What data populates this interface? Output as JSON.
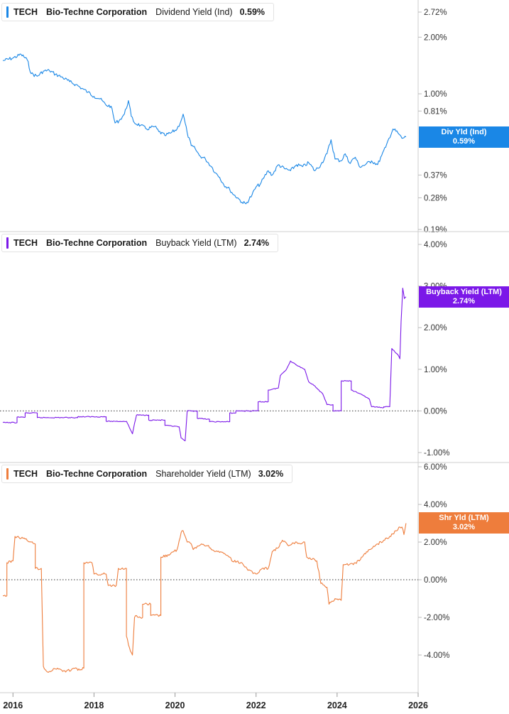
{
  "chart_data": [
    {
      "type": "line",
      "ticker": "TECH",
      "company": "Bio-Techne Corporation",
      "metric": "Dividend Yield (Ind)",
      "current_value": "0.59%",
      "flag_label": "Div Yld (Ind)",
      "color": "#1a87e6",
      "y_scale": "log",
      "y_ticks": [
        {
          "value": 2.72,
          "label": "2.72%"
        },
        {
          "value": 2.0,
          "label": "2.00%"
        },
        {
          "value": 1.0,
          "label": "1.00%"
        },
        {
          "value": 0.81,
          "label": "0.81%"
        },
        {
          "value": 0.37,
          "label": "0.37%"
        },
        {
          "value": 0.28,
          "label": "0.28%"
        },
        {
          "value": 0.19,
          "label": "0.19%"
        }
      ],
      "ylim": [
        0.19,
        2.72
      ],
      "zero_line": false,
      "series": [
        {
          "points": [
            [
              2015.75,
              1.5
            ],
            [
              2016.0,
              1.55
            ],
            [
              2016.2,
              1.62
            ],
            [
              2016.35,
              1.52
            ],
            [
              2016.45,
              1.28
            ],
            [
              2016.6,
              1.24
            ],
            [
              2016.75,
              1.32
            ],
            [
              2016.9,
              1.33
            ],
            [
              2017.05,
              1.27
            ],
            [
              2017.2,
              1.23
            ],
            [
              2017.4,
              1.16
            ],
            [
              2017.55,
              1.12
            ],
            [
              2017.7,
              1.07
            ],
            [
              2017.85,
              1.02
            ],
            [
              2018.0,
              0.97
            ],
            [
              2018.15,
              0.94
            ],
            [
              2018.3,
              0.87
            ],
            [
              2018.42,
              0.86
            ],
            [
              2018.52,
              0.7
            ],
            [
              2018.62,
              0.72
            ],
            [
              2018.75,
              0.78
            ],
            [
              2018.85,
              0.92
            ],
            [
              2018.92,
              0.76
            ],
            [
              2019.0,
              0.7
            ],
            [
              2019.15,
              0.68
            ],
            [
              2019.3,
              0.65
            ],
            [
              2019.5,
              0.67
            ],
            [
              2019.6,
              0.63
            ],
            [
              2019.75,
              0.6
            ],
            [
              2019.9,
              0.62
            ],
            [
              2020.05,
              0.65
            ],
            [
              2020.15,
              0.72
            ],
            [
              2020.2,
              0.78
            ],
            [
              2020.3,
              0.62
            ],
            [
              2020.4,
              0.53
            ],
            [
              2020.5,
              0.51
            ],
            [
              2020.6,
              0.47
            ],
            [
              2020.75,
              0.45
            ],
            [
              2020.9,
              0.41
            ],
            [
              2021.0,
              0.38
            ],
            [
              2021.1,
              0.36
            ],
            [
              2021.2,
              0.33
            ],
            [
              2021.35,
              0.31
            ],
            [
              2021.45,
              0.29
            ],
            [
              2021.55,
              0.28
            ],
            [
              2021.65,
              0.265
            ],
            [
              2021.75,
              0.26
            ],
            [
              2021.9,
              0.29
            ],
            [
              2022.0,
              0.32
            ],
            [
              2022.1,
              0.33
            ],
            [
              2022.2,
              0.36
            ],
            [
              2022.3,
              0.39
            ],
            [
              2022.4,
              0.37
            ],
            [
              2022.55,
              0.42
            ],
            [
              2022.7,
              0.4
            ],
            [
              2022.85,
              0.39
            ],
            [
              2023.0,
              0.42
            ],
            [
              2023.15,
              0.41
            ],
            [
              2023.3,
              0.43
            ],
            [
              2023.45,
              0.39
            ],
            [
              2023.6,
              0.42
            ],
            [
              2023.75,
              0.48
            ],
            [
              2023.85,
              0.57
            ],
            [
              2023.95,
              0.45
            ],
            [
              2024.1,
              0.44
            ],
            [
              2024.2,
              0.48
            ],
            [
              2024.3,
              0.43
            ],
            [
              2024.45,
              0.46
            ],
            [
              2024.55,
              0.41
            ],
            [
              2024.7,
              0.42
            ],
            [
              2024.85,
              0.44
            ],
            [
              2025.0,
              0.42
            ],
            [
              2025.1,
              0.47
            ],
            [
              2025.2,
              0.52
            ],
            [
              2025.28,
              0.58
            ],
            [
              2025.38,
              0.65
            ],
            [
              2025.5,
              0.62
            ],
            [
              2025.6,
              0.58
            ],
            [
              2025.7,
              0.59
            ]
          ]
        }
      ]
    },
    {
      "type": "line",
      "ticker": "TECH",
      "company": "Bio-Techne Corporation",
      "metric": "Buyback Yield (LTM)",
      "current_value": "2.74%",
      "flag_label": "Buyback Yield (LTM)",
      "color": "#7b18e8",
      "y_scale": "linear",
      "y_ticks": [
        {
          "value": 4.0,
          "label": "4.00%"
        },
        {
          "value": 3.0,
          "label": "3.00%"
        },
        {
          "value": 2.0,
          "label": "2.00%"
        },
        {
          "value": 1.0,
          "label": "1.00%"
        },
        {
          "value": 0.0,
          "label": "0.00%"
        },
        {
          "value": -1.0,
          "label": "-1.00%"
        }
      ],
      "ylim": [
        -1.0,
        4.0
      ],
      "zero_line": true,
      "series": [
        {
          "points": [
            [
              2015.75,
              -0.28
            ],
            [
              2016.1,
              -0.28
            ],
            [
              2016.1,
              -0.15
            ],
            [
              2016.3,
              -0.15
            ],
            [
              2016.3,
              -0.05
            ],
            [
              2016.6,
              -0.05
            ],
            [
              2016.6,
              -0.16
            ],
            [
              2017.6,
              -0.16
            ],
            [
              2017.6,
              -0.14
            ],
            [
              2018.3,
              -0.14
            ],
            [
              2018.3,
              -0.25
            ],
            [
              2018.8,
              -0.25
            ],
            [
              2018.95,
              -0.55
            ],
            [
              2019.0,
              -0.3
            ],
            [
              2019.05,
              -0.1
            ],
            [
              2019.35,
              -0.1
            ],
            [
              2019.35,
              -0.22
            ],
            [
              2019.75,
              -0.22
            ],
            [
              2019.75,
              -0.35
            ],
            [
              2020.1,
              -0.38
            ],
            [
              2020.15,
              -0.65
            ],
            [
              2020.25,
              -0.72
            ],
            [
              2020.3,
              0.0
            ],
            [
              2020.55,
              0.0
            ],
            [
              2020.55,
              -0.18
            ],
            [
              2020.85,
              -0.2
            ],
            [
              2020.85,
              -0.26
            ],
            [
              2021.35,
              -0.26
            ],
            [
              2021.35,
              -0.05
            ],
            [
              2021.5,
              -0.05
            ],
            [
              2021.5,
              0.0
            ],
            [
              2022.05,
              0.0
            ],
            [
              2022.05,
              0.22
            ],
            [
              2022.3,
              0.22
            ],
            [
              2022.3,
              0.5
            ],
            [
              2022.55,
              0.55
            ],
            [
              2022.6,
              0.85
            ],
            [
              2022.75,
              1.0
            ],
            [
              2022.85,
              1.2
            ],
            [
              2023.0,
              1.1
            ],
            [
              2023.2,
              1.0
            ],
            [
              2023.3,
              0.7
            ],
            [
              2023.45,
              0.6
            ],
            [
              2023.65,
              0.4
            ],
            [
              2023.75,
              0.15
            ],
            [
              2023.9,
              0.15
            ],
            [
              2023.9,
              0.0
            ],
            [
              2024.1,
              0.0
            ],
            [
              2024.1,
              0.72
            ],
            [
              2024.35,
              0.72
            ],
            [
              2024.35,
              0.5
            ],
            [
              2024.6,
              0.4
            ],
            [
              2024.8,
              0.28
            ],
            [
              2024.85,
              0.1
            ],
            [
              2025.15,
              0.08
            ],
            [
              2025.15,
              0.1
            ],
            [
              2025.3,
              0.1
            ],
            [
              2025.35,
              1.5
            ],
            [
              2025.5,
              1.35
            ],
            [
              2025.55,
              1.25
            ],
            [
              2025.58,
              2.15
            ],
            [
              2025.62,
              2.95
            ],
            [
              2025.66,
              2.7
            ],
            [
              2025.7,
              2.74
            ]
          ]
        }
      ]
    },
    {
      "type": "line",
      "ticker": "TECH",
      "company": "Bio-Techne Corporation",
      "metric": "Shareholder Yield (LTM)",
      "current_value": "3.02%",
      "flag_label": "Shr Yld (LTM)",
      "color": "#ee7d3c",
      "y_scale": "linear",
      "y_ticks": [
        {
          "value": 6.0,
          "label": "6.00%"
        },
        {
          "value": 4.0,
          "label": "4.00%"
        },
        {
          "value": 2.0,
          "label": "2.00%"
        },
        {
          "value": 0.0,
          "label": "0.00%"
        },
        {
          "value": -2.0,
          "label": "-2.00%"
        },
        {
          "value": -4.0,
          "label": "-4.00%"
        }
      ],
      "ylim": [
        -5.0,
        6.0
      ],
      "zero_line": true,
      "series": [
        {
          "points": [
            [
              2015.75,
              -0.85
            ],
            [
              2015.85,
              -0.85
            ],
            [
              2015.85,
              0.9
            ],
            [
              2016.0,
              1.0
            ],
            [
              2016.05,
              2.3
            ],
            [
              2016.25,
              2.2
            ],
            [
              2016.45,
              2.0
            ],
            [
              2016.55,
              1.9
            ],
            [
              2016.55,
              0.6
            ],
            [
              2016.7,
              0.6
            ],
            [
              2016.75,
              -4.6
            ],
            [
              2016.85,
              -4.9
            ],
            [
              2017.1,
              -4.7
            ],
            [
              2017.3,
              -4.9
            ],
            [
              2017.5,
              -4.7
            ],
            [
              2017.65,
              -4.8
            ],
            [
              2017.75,
              -4.7
            ],
            [
              2017.75,
              0.9
            ],
            [
              2017.95,
              0.9
            ],
            [
              2018.0,
              0.3
            ],
            [
              2018.3,
              0.3
            ],
            [
              2018.35,
              -0.3
            ],
            [
              2018.55,
              -0.3
            ],
            [
              2018.6,
              0.6
            ],
            [
              2018.8,
              0.6
            ],
            [
              2018.8,
              -3.0
            ],
            [
              2018.9,
              -3.8
            ],
            [
              2018.95,
              -4.0
            ],
            [
              2019.0,
              -2.0
            ],
            [
              2019.05,
              -1.9
            ],
            [
              2019.1,
              -2.0
            ],
            [
              2019.2,
              -2.0
            ],
            [
              2019.2,
              -1.3
            ],
            [
              2019.4,
              -1.3
            ],
            [
              2019.4,
              -1.9
            ],
            [
              2019.65,
              -1.9
            ],
            [
              2019.65,
              1.2
            ],
            [
              2019.85,
              1.3
            ],
            [
              2020.05,
              1.6
            ],
            [
              2020.15,
              2.5
            ],
            [
              2020.2,
              2.6
            ],
            [
              2020.3,
              2.0
            ],
            [
              2020.4,
              1.9
            ],
            [
              2020.45,
              1.6
            ],
            [
              2020.65,
              1.9
            ],
            [
              2020.8,
              1.8
            ],
            [
              2021.0,
              1.5
            ],
            [
              2021.2,
              1.4
            ],
            [
              2021.35,
              1.2
            ],
            [
              2021.4,
              1.0
            ],
            [
              2021.65,
              0.9
            ],
            [
              2021.8,
              0.5
            ],
            [
              2022.0,
              0.3
            ],
            [
              2022.15,
              0.6
            ],
            [
              2022.3,
              0.6
            ],
            [
              2022.4,
              1.5
            ],
            [
              2022.55,
              1.7
            ],
            [
              2022.65,
              2.1
            ],
            [
              2022.8,
              1.8
            ],
            [
              2023.0,
              2.0
            ],
            [
              2023.1,
              1.9
            ],
            [
              2023.2,
              2.0
            ],
            [
              2023.25,
              1.2
            ],
            [
              2023.5,
              1.0
            ],
            [
              2023.6,
              -0.2
            ],
            [
              2023.75,
              -0.4
            ],
            [
              2023.8,
              -1.3
            ],
            [
              2023.95,
              -1.0
            ],
            [
              2024.1,
              -1.1
            ],
            [
              2024.15,
              0.8
            ],
            [
              2024.3,
              0.8
            ],
            [
              2024.45,
              0.9
            ],
            [
              2024.55,
              1.0
            ],
            [
              2024.6,
              1.2
            ],
            [
              2024.8,
              1.6
            ],
            [
              2025.0,
              1.9
            ],
            [
              2025.15,
              2.1
            ],
            [
              2025.3,
              2.3
            ],
            [
              2025.45,
              2.6
            ],
            [
              2025.55,
              2.8
            ],
            [
              2025.6,
              2.8
            ],
            [
              2025.65,
              2.4
            ],
            [
              2025.7,
              3.0
            ]
          ]
        }
      ]
    }
  ],
  "x_axis": {
    "ticks": [
      {
        "value": 2016,
        "label": "2016"
      },
      {
        "value": 2018,
        "label": "2018"
      },
      {
        "value": 2020,
        "label": "2020"
      },
      {
        "value": 2022,
        "label": "2022"
      },
      {
        "value": 2024,
        "label": "2024"
      },
      {
        "value": 2026,
        "label": "2026"
      }
    ],
    "xlim": [
      2015.68,
      2026.0
    ]
  }
}
